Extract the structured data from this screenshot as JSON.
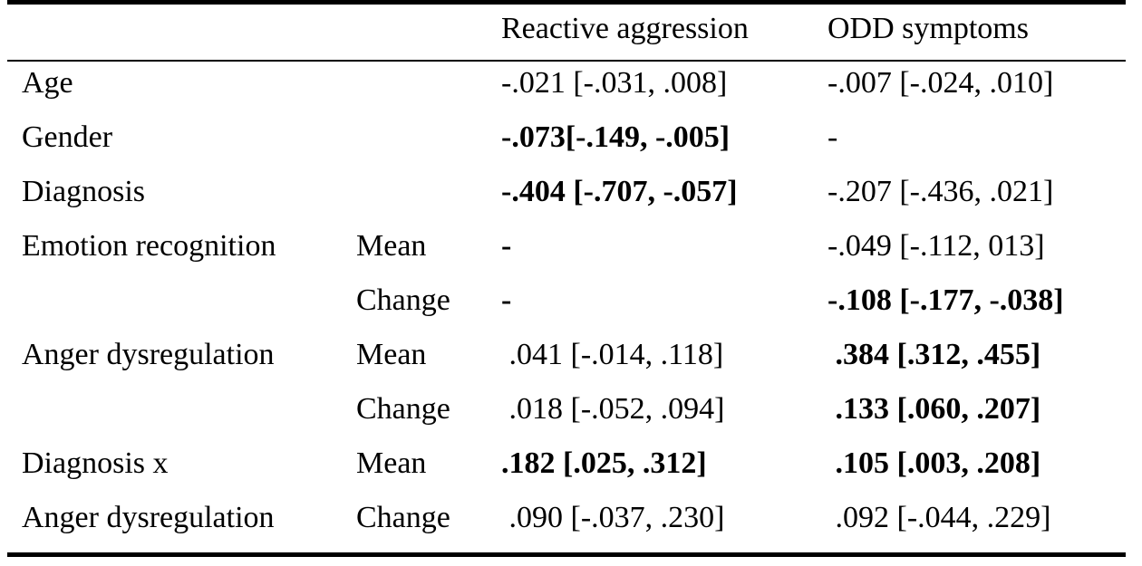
{
  "table": {
    "headers": {
      "reactive": "Reactive aggression",
      "odd": "ODD symptoms"
    },
    "rows": [
      {
        "var": "Age",
        "sub": "",
        "reactive": "-.021 [-.031, .008]",
        "reactive_bold": false,
        "odd": "-.007 [-.024, .010]",
        "odd_bold": false
      },
      {
        "var": "Gender",
        "sub": "",
        "reactive": "-.073[-.149, -.005]",
        "reactive_bold": true,
        "odd": "-",
        "odd_bold": false
      },
      {
        "var": "Diagnosis",
        "sub": "",
        "reactive": "-.404 [-.707, -.057]",
        "reactive_bold": true,
        "odd": "-.207 [-.436, .021]",
        "odd_bold": false
      },
      {
        "var": "Emotion recognition",
        "sub": "Mean",
        "reactive": "-",
        "reactive_bold": true,
        "odd": "-.049 [-.112, 013]",
        "odd_bold": false
      },
      {
        "var": "",
        "sub": "Change",
        "reactive": "-",
        "reactive_bold": true,
        "odd": "-.108 [-.177, -.038]",
        "odd_bold": true
      },
      {
        "var": "Anger dysregulation",
        "sub": "Mean",
        "reactive": " .041 [-.014, .118]",
        "reactive_bold": false,
        "odd": " .384 [.312, .455]",
        "odd_bold": true
      },
      {
        "var": "",
        "sub": "Change",
        "reactive": " .018 [-.052, .094]",
        "reactive_bold": false,
        "odd": " .133 [.060, .207]",
        "odd_bold": true
      },
      {
        "var": "Diagnosis x",
        "sub": "Mean",
        "reactive": ".182 [.025, .312]",
        "reactive_bold": true,
        "odd": " .105 [.003, .208]",
        "odd_bold": true
      },
      {
        "var": "Anger dysregulation",
        "sub": "Change",
        "reactive": " .090 [-.037, .230]",
        "reactive_bold": false,
        "odd": " .092 [-.044, .229]",
        "odd_bold": false
      }
    ]
  }
}
